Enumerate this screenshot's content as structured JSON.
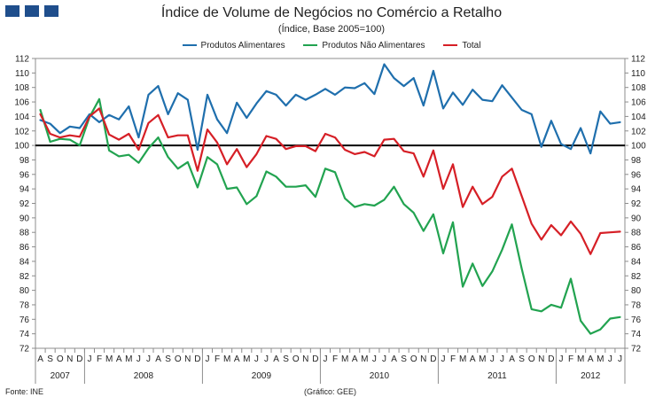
{
  "chart_data": {
    "type": "line",
    "title": "Índice de Volume de Negócios no Comércio a Retalho",
    "subtitle": "(Índice, Base 2005=100)",
    "legend_position": "top",
    "x": [
      "A",
      "S",
      "O",
      "N",
      "D",
      "J",
      "F",
      "M",
      "A",
      "M",
      "J",
      "J",
      "A",
      "S",
      "O",
      "N",
      "D",
      "J",
      "F",
      "M",
      "A",
      "M",
      "J",
      "J",
      "A",
      "S",
      "O",
      "N",
      "D",
      "J",
      "F",
      "M",
      "A",
      "M",
      "J",
      "J",
      "A",
      "S",
      "O",
      "N",
      "D",
      "J",
      "F",
      "M",
      "A",
      "M",
      "J",
      "J",
      "A",
      "S",
      "O",
      "N",
      "D",
      "J",
      "F",
      "M",
      "A",
      "M",
      "J",
      "J"
    ],
    "years": [
      {
        "label": "2007",
        "start": 0,
        "end": 4
      },
      {
        "label": "2008",
        "start": 5,
        "end": 16
      },
      {
        "label": "2009",
        "start": 17,
        "end": 28
      },
      {
        "label": "2010",
        "start": 29,
        "end": 40
      },
      {
        "label": "2011",
        "start": 41,
        "end": 52
      },
      {
        "label": "2012",
        "start": 53,
        "end": 59
      }
    ],
    "ylim": [
      72,
      112
    ],
    "yticks": [
      72,
      74,
      76,
      78,
      80,
      82,
      84,
      86,
      88,
      90,
      92,
      94,
      96,
      98,
      100,
      102,
      104,
      106,
      108,
      110,
      112
    ],
    "reference_line": 100,
    "series": [
      {
        "name": "Produtos Alimentares",
        "color": "#1f6fad",
        "values": [
          103.5,
          103.0,
          101.7,
          102.6,
          102.4,
          104.3,
          103.2,
          104.2,
          103.6,
          105.4,
          101.1,
          107.0,
          108.2,
          104.3,
          107.2,
          106.3,
          99.4,
          107.0,
          103.6,
          101.7,
          105.9,
          103.8,
          105.8,
          107.5,
          107.0,
          105.5,
          107.0,
          106.3,
          107.0,
          107.8,
          107.0,
          108.0,
          107.9,
          108.6,
          107.1,
          111.2,
          109.3,
          108.2,
          109.3,
          105.5,
          110.3,
          105.1,
          107.3,
          105.6,
          107.7,
          106.3,
          106.1,
          108.3,
          106.6,
          104.9,
          104.3,
          99.8,
          103.4,
          100.2,
          99.5,
          102.4,
          98.9,
          104.7,
          103.0,
          103.2
        ]
      },
      {
        "name": "Produtos Não Alimentares",
        "color": "#22a350",
        "values": [
          104.9,
          100.5,
          100.9,
          100.8,
          100.0,
          103.9,
          106.4,
          99.3,
          98.5,
          98.7,
          97.6,
          99.6,
          101.1,
          98.4,
          96.8,
          97.7,
          94.2,
          98.4,
          97.4,
          94.0,
          94.2,
          91.9,
          93.0,
          96.4,
          95.7,
          94.3,
          94.3,
          94.5,
          92.9,
          96.8,
          96.3,
          92.7,
          91.5,
          91.9,
          91.7,
          92.5,
          94.3,
          91.9,
          90.7,
          88.2,
          90.5,
          85.1,
          89.4,
          80.5,
          83.7,
          80.6,
          82.6,
          85.6,
          89.1,
          83.0,
          77.4,
          77.1,
          78.0,
          77.6,
          81.6,
          75.8,
          74.0,
          74.6,
          76.1,
          76.3
        ]
      },
      {
        "name": "Total",
        "color": "#d61f26",
        "values": [
          104.3,
          101.6,
          101.1,
          101.4,
          101.2,
          104.0,
          105.1,
          101.5,
          100.8,
          101.6,
          99.4,
          103.1,
          104.2,
          101.1,
          101.4,
          101.4,
          96.5,
          102.2,
          100.4,
          97.4,
          99.5,
          97.0,
          98.8,
          101.3,
          100.9,
          99.5,
          99.9,
          99.9,
          99.2,
          101.6,
          101.1,
          99.4,
          98.8,
          99.1,
          98.5,
          100.8,
          100.9,
          99.2,
          98.9,
          95.7,
          99.3,
          94.0,
          97.4,
          91.5,
          94.3,
          91.9,
          92.9,
          95.7,
          96.8,
          93.0,
          89.2,
          87.0,
          89.0,
          87.6,
          89.5,
          87.8,
          85.0,
          87.9,
          88.0,
          88.1
        ]
      }
    ]
  },
  "footer": {
    "source": "Fonte: INE",
    "credit": "(Gráfico: GEE)"
  }
}
